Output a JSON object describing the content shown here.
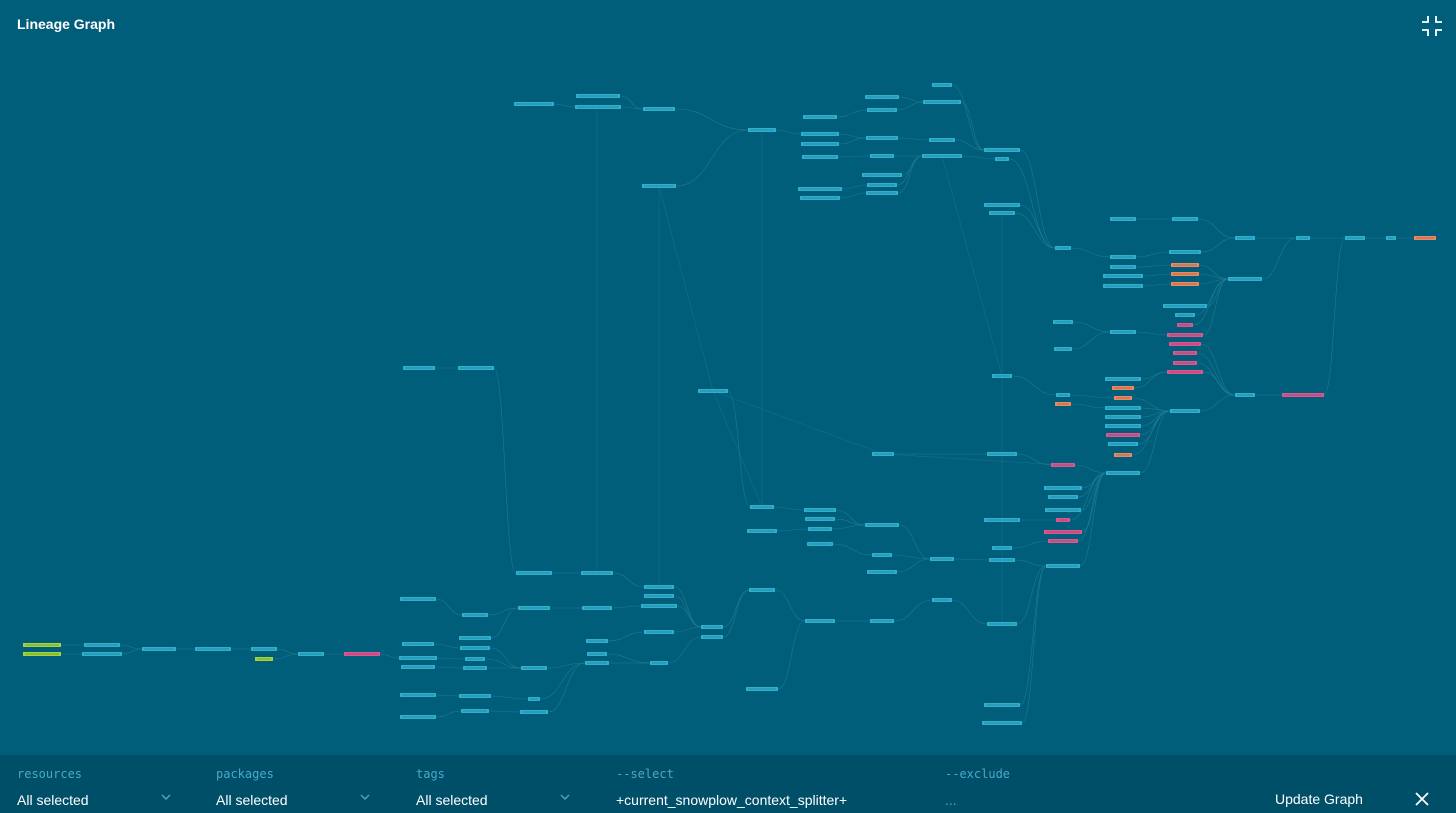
{
  "header": {
    "title": "Lineage Graph",
    "collapse_icon": "collapse-icon"
  },
  "colors": {
    "background": "#005e7a",
    "bottom_bar": "#004f68",
    "node_default": "#2fb0cf",
    "node_source": "#a6d53a",
    "node_selected": "#e0558f",
    "node_warning": "#f0875f",
    "edge": "#2a7f98",
    "label_accent": "#4aa9c8"
  },
  "filters": {
    "resources": {
      "label": "resources",
      "value": "All selected"
    },
    "packages": {
      "label": "packages",
      "value": "All selected"
    },
    "tags": {
      "label": "tags",
      "value": "All selected"
    },
    "select": {
      "label": "--select",
      "value": "+current_snowplow_context_splitter+"
    },
    "exclude": {
      "label": "--exclude",
      "placeholder": "..."
    }
  },
  "actions": {
    "update_label": "Update Graph",
    "close_icon": "close-icon"
  }
}
